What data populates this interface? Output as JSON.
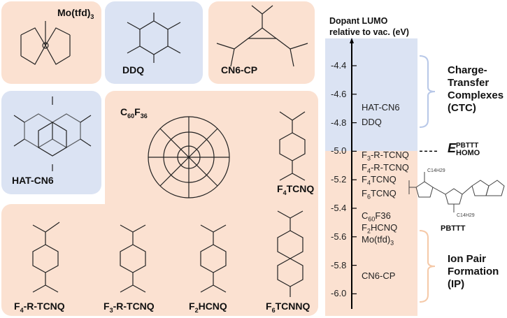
{
  "colors": {
    "ctc": "#dbe3f3",
    "ip": "#fbe1d1",
    "axis": "#000000",
    "brace_ctc": "#b8c8e8",
    "brace_ip": "#f5c9a8"
  },
  "molecules": {
    "mo_tfd3": {
      "label": "Mo(tfd)",
      "sub": "3",
      "category": "IP"
    },
    "ddq": {
      "label": "DDQ",
      "category": "CTC"
    },
    "cn6_cp": {
      "label": "CN6-CP",
      "category": "IP"
    },
    "hat_cn6": {
      "label": "HAT-CN6",
      "category": "CTC"
    },
    "c60f36": {
      "pre": "C",
      "sub1": "60",
      "mid": "F",
      "sub2": "36",
      "category": "IP"
    },
    "f4tcnq": {
      "pre": "F",
      "sub": "4",
      "post": "TCNQ",
      "category": "IP"
    },
    "f4_r_tcnq": {
      "pre": "F",
      "sub": "4",
      "post": "-R-TCNQ"
    },
    "f3_r_tcnq": {
      "pre": "F",
      "sub": "3",
      "post": "-R-TCNQ"
    },
    "f2hcnq": {
      "pre": "F",
      "sub": "2",
      "post": "HCNQ"
    },
    "f6tcnnq": {
      "pre": "F",
      "sub": "6",
      "post": "TCNNQ"
    }
  },
  "energy_axis": {
    "title_line1": "Dopant LUMO",
    "title_line2": "relative to vac. (eV)",
    "ticks": [
      "-4.4",
      "-4.6",
      "-4.8",
      "-5.0",
      "-5.2",
      "-5.4",
      "-5.6",
      "-5.8",
      "-6.0"
    ],
    "tick_values": [
      -4.4,
      -4.6,
      -4.8,
      -5.0,
      -5.2,
      -5.4,
      -5.6,
      -5.8,
      -6.0
    ],
    "levels": [
      {
        "pre": "HAT-CN6",
        "sub": "",
        "post": "",
        "value": -4.7
      },
      {
        "pre": "DDQ",
        "sub": "",
        "post": "",
        "value": -4.8
      },
      {
        "pre": "F",
        "sub": "3",
        "post": "-R-TCNQ",
        "value": -5.03
      },
      {
        "pre": "F",
        "sub": "4",
        "post": "-R-TCNQ",
        "value": -5.12
      },
      {
        "pre": "F",
        "sub": "4",
        "post": "TCNQ",
        "value": -5.19
      },
      {
        "pre": "F",
        "sub": "6",
        "post": "TCNQ",
        "value": -5.3
      },
      {
        "pre": "C",
        "sub": "60",
        "post": "F36",
        "value": -5.46
      },
      {
        "pre": "F",
        "sub": "2",
        "post": "HCNQ",
        "value": -5.53
      },
      {
        "pre": "Mo(tfd)",
        "sub": "3",
        "post": "",
        "value": -5.6
      },
      {
        "pre": "CN6-CP",
        "sub": "",
        "post": "",
        "value": -5.88
      }
    ],
    "homo": {
      "E": "E",
      "sup": "PBTTT",
      "sub": "HOMO",
      "value": -5.0
    }
  },
  "regions": {
    "ctc": {
      "line1": "Charge-",
      "line2": "Transfer",
      "line3": "Complexes",
      "line4": "(CTC)"
    },
    "ip": {
      "line1": "Ion Pair",
      "line2": "Formation",
      "line3": "(IP)"
    }
  },
  "polymer": {
    "label": "PBTTT",
    "side_chain": "C14H29"
  }
}
